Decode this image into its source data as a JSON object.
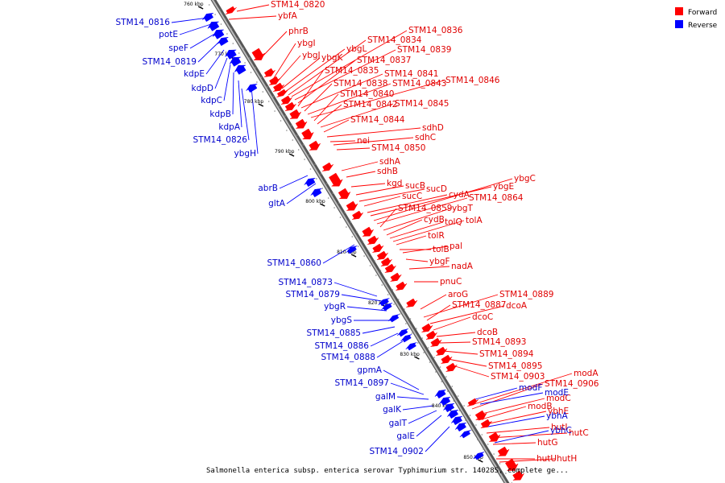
{
  "legend": {
    "forward_label": "Forward",
    "reverse_label": "Reverse",
    "forward_color": "#ff0000",
    "reverse_color": "#0000ff"
  },
  "caption": "Salmonella enterica subsp. enterica serovar Typhimurium str. 14028S, complete ge...",
  "kbp_ticks": [
    "760 kbp",
    "770 kbp",
    "780 kbp",
    "790 kbp",
    "800 kbp",
    "810 kbp",
    "820 kbp",
    "830 kbp",
    "840 kbp",
    "850 kbp"
  ],
  "forward_genes": [
    "STM14_0820",
    "ybfA",
    "phrB",
    "ybgI",
    "ybgJ",
    "ybgK",
    "ybgL",
    "STM14_0834",
    "STM14_0836",
    "STM14_0839",
    "STM14_0837",
    "STM14_0835",
    "STM14_0841",
    "STM14_0838",
    "STM14_0843",
    "STM14_0846",
    "STM14_0840",
    "STM14_0842",
    "STM14_0845",
    "STM14_0844",
    "sdhD",
    "nei",
    "sdhC",
    "STM14_0850",
    "sdhA",
    "sdhB",
    "kgd",
    "sucB",
    "sucD",
    "sucC",
    "cydA",
    "ybgE",
    "ybgC",
    "STM14_0864",
    "STM14_0859",
    "ybgT",
    "cydB",
    "tolQ",
    "tolA",
    "tolR",
    "tolB",
    "pal",
    "ybgF",
    "nadA",
    "pnuC",
    "aroG",
    "STM14_0889",
    "STM14_0887",
    "dcoA",
    "dcoC",
    "dcoB",
    "STM14_0893",
    "STM14_0894",
    "STM14_0895",
    "STM14_0903",
    "modA",
    "STM14_0906",
    "modC",
    "modB",
    "ybhE",
    "hutI",
    "hutC",
    "hutG",
    "hutU",
    "hutH"
  ],
  "reverse_genes": [
    "STM14_0816",
    "potE",
    "speF",
    "STM14_0819",
    "kdpE",
    "kdpD",
    "kdpC",
    "kdpB",
    "kdpA",
    "STM14_0826",
    "ybgH",
    "abrB",
    "gltA",
    "STM14_0860",
    "STM14_0873",
    "STM14_0879",
    "ybgR",
    "ybgS",
    "STM14_0885",
    "STM14_0886",
    "STM14_0888",
    "gpmA",
    "STM14_0897",
    "galM",
    "galK",
    "galT",
    "galE",
    "STM14_0902",
    "modF",
    "modE",
    "ybhA",
    "ybhC"
  ]
}
